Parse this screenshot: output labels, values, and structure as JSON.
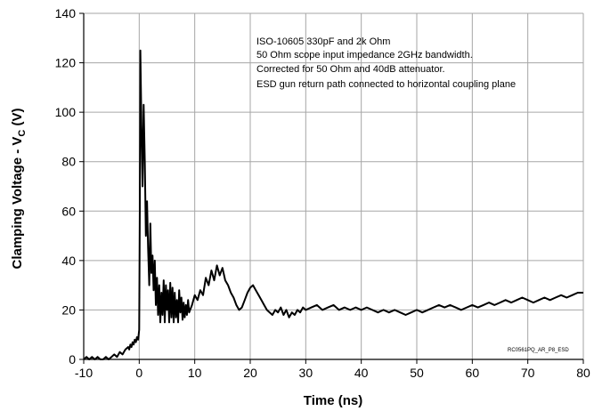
{
  "chart_data": {
    "type": "line",
    "xlabel": "Time (ns)",
    "ylabel_main": "Clamping Voltage - V",
    "ylabel_sub": "C",
    "ylabel_unit": " (V)",
    "xlim": [
      -10,
      80
    ],
    "ylim": [
      0,
      140
    ],
    "x_ticks": [
      -10,
      0,
      10,
      20,
      30,
      40,
      50,
      60,
      70,
      80
    ],
    "y_ticks": [
      0,
      20,
      40,
      60,
      80,
      100,
      120,
      140
    ],
    "grid": true,
    "annotations": [
      "ISO-10605 330pF and 2k Ohm",
      "50 Ohm scope input impedance 2GHz bandwidth.",
      "Corrected for 50 Ohm and 40dB attenuator.",
      "ESD gun return path connected to horizontal coupling plane"
    ],
    "figure_id": "RC0561PQ_AR_P8_ESD",
    "series": [
      {
        "x": [
          -10,
          -9.5,
          -9,
          -8.5,
          -8,
          -7.5,
          -7,
          -6.5,
          -6,
          -5.5,
          -5,
          -4.5,
          -4,
          -3.5,
          -3,
          -2.5,
          -2,
          -1.8,
          -1.6,
          -1.4,
          -1.2,
          -1,
          -0.8,
          -0.6,
          -0.4,
          -0.2,
          0,
          0.1,
          0.2,
          0.3,
          0.4,
          0.6,
          0.8,
          1.0,
          1.2,
          1.4,
          1.6,
          1.8,
          2.0,
          2.2,
          2.4,
          2.6,
          2.8,
          3.0,
          3.2,
          3.4,
          3.6,
          3.8,
          4.0,
          4.2,
          4.4,
          4.6,
          4.8,
          5.0,
          5.2,
          5.4,
          5.6,
          5.8,
          6.0,
          6.2,
          6.4,
          6.6,
          6.8,
          7.0,
          7.2,
          7.4,
          7.6,
          7.8,
          8.0,
          8.2,
          8.4,
          8.6,
          8.8,
          9.0,
          9.5,
          10,
          10.5,
          11,
          11.5,
          12,
          12.5,
          13,
          13.5,
          14,
          14.5,
          15,
          15.5,
          16,
          16.5,
          17,
          17.5,
          18,
          18.5,
          19,
          19.5,
          20,
          20.5,
          21,
          21.5,
          22,
          22.5,
          23,
          23.5,
          24,
          24.5,
          25,
          25.5,
          26,
          26.5,
          27,
          27.5,
          28,
          28.5,
          29,
          29.5,
          30,
          31,
          32,
          33,
          34,
          35,
          36,
          37,
          38,
          39,
          40,
          41,
          42,
          43,
          44,
          45,
          46,
          47,
          48,
          49,
          50,
          51,
          52,
          53,
          54,
          55,
          56,
          57,
          58,
          59,
          60,
          61,
          62,
          63,
          64,
          65,
          66,
          67,
          68,
          69,
          70,
          71,
          72,
          73,
          74,
          75,
          76,
          77,
          78,
          79,
          80
        ],
        "y": [
          0,
          1,
          0,
          1,
          0,
          1,
          0,
          0,
          1,
          0,
          1,
          2,
          1,
          3,
          2,
          4,
          5,
          4,
          6,
          5,
          7,
          6,
          8,
          7,
          9,
          8,
          12,
          60,
          125,
          110,
          95,
          70,
          103,
          80,
          50,
          64,
          45,
          30,
          55,
          35,
          42,
          28,
          40,
          22,
          33,
          18,
          30,
          15,
          27,
          18,
          32,
          15,
          30,
          20,
          28,
          15,
          31,
          17,
          29,
          15,
          27,
          17,
          24,
          15,
          28,
          19,
          25,
          16,
          23,
          17,
          22,
          18,
          24,
          19,
          22,
          26,
          24,
          28,
          26,
          33,
          30,
          36,
          32,
          38,
          34,
          37,
          32,
          30,
          27,
          25,
          22,
          20,
          21,
          24,
          27,
          29,
          30,
          28,
          26,
          24,
          22,
          20,
          19,
          18,
          20,
          19,
          21,
          18,
          20,
          17,
          19,
          18,
          20,
          19,
          21,
          20,
          21,
          22,
          20,
          21,
          22,
          20,
          21,
          20,
          21,
          20,
          21,
          20,
          19,
          20,
          19,
          20,
          19,
          18,
          19,
          20,
          19,
          20,
          21,
          22,
          21,
          22,
          21,
          20,
          21,
          22,
          21,
          22,
          23,
          22,
          23,
          24,
          23,
          24,
          25,
          24,
          23,
          24,
          25,
          24,
          25,
          26,
          25,
          26,
          27,
          27
        ]
      }
    ]
  }
}
